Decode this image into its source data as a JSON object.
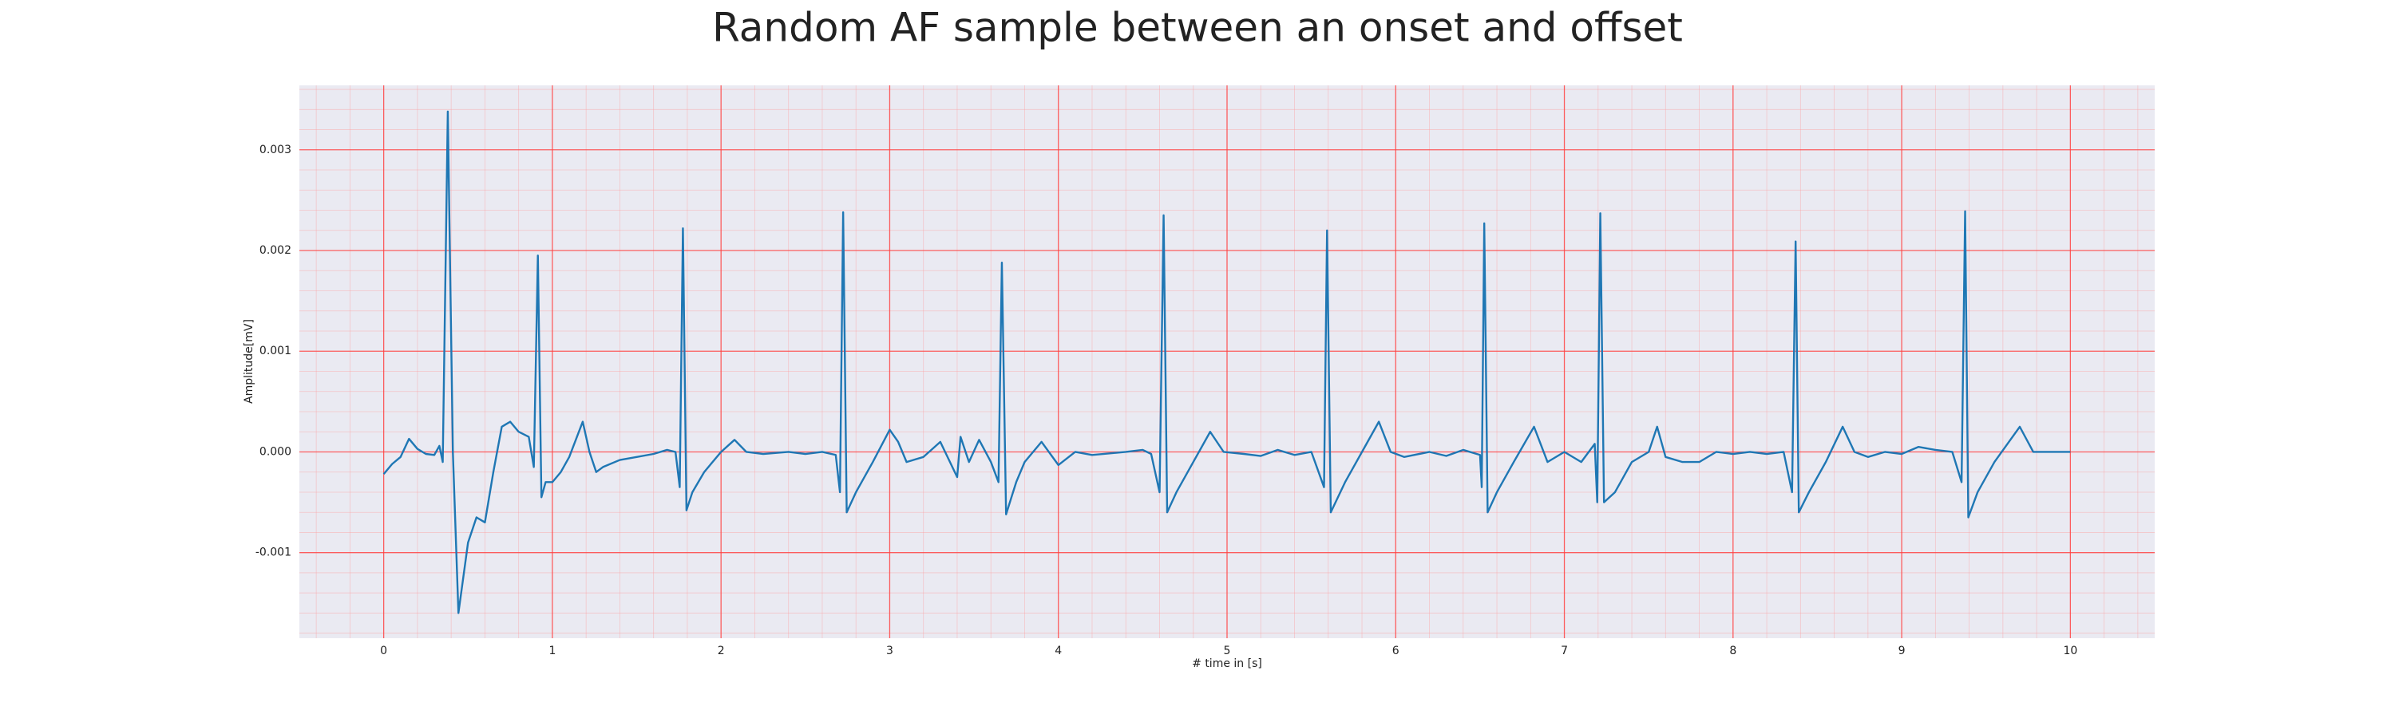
{
  "chart_data": {
    "type": "line",
    "title": "Random AF sample between an onset and offset",
    "xlabel": "# time in [s]",
    "ylabel": "Amplitude[mV]",
    "color": "#1f77b4",
    "grid": true,
    "minor_grid": true,
    "xlim": [
      -0.5,
      10.5
    ],
    "ylim": [
      -0.00185,
      0.00364
    ],
    "xticks": [
      0,
      1,
      2,
      3,
      4,
      5,
      6,
      7,
      8,
      9,
      10
    ],
    "yticks": [
      -0.001,
      {
        "value": 0,
        "label": "0.000"
      },
      0.001,
      0.002,
      0.003
    ],
    "x": [
      0,
      0.05,
      0.1,
      0.15,
      0.2,
      0.25,
      0.3,
      0.33,
      0.35,
      0.38,
      0.41,
      0.443,
      0.5,
      0.55,
      0.6,
      0.65,
      0.7,
      0.75,
      0.8,
      0.86,
      0.89,
      0.914,
      0.935,
      0.96,
      1.0,
      1.05,
      1.1,
      1.18,
      1.22,
      1.26,
      1.3,
      1.4,
      1.5,
      1.6,
      1.68,
      1.73,
      1.755,
      1.774,
      1.795,
      1.83,
      1.9,
      2.0,
      2.08,
      2.15,
      2.25,
      2.4,
      2.5,
      2.6,
      2.68,
      2.705,
      2.724,
      2.745,
      2.8,
      2.9,
      3.0,
      3.05,
      3.1,
      3.2,
      3.3,
      3.4,
      3.42,
      3.47,
      3.53,
      3.6,
      3.645,
      3.665,
      3.69,
      3.75,
      3.8,
      3.9,
      4.0,
      4.1,
      4.2,
      4.4,
      4.5,
      4.55,
      4.6,
      4.624,
      4.645,
      4.7,
      4.8,
      4.9,
      4.98,
      5.1,
      5.2,
      5.3,
      5.4,
      5.5,
      5.575,
      5.593,
      5.615,
      5.7,
      5.8,
      5.9,
      5.97,
      6.05,
      6.2,
      6.3,
      6.4,
      6.5,
      6.51,
      6.525,
      6.545,
      6.6,
      6.7,
      6.82,
      6.9,
      7.0,
      7.1,
      7.18,
      7.195,
      7.213,
      7.235,
      7.3,
      7.4,
      7.5,
      7.55,
      7.6,
      7.7,
      7.8,
      7.9,
      8.0,
      8.1,
      8.2,
      8.3,
      8.35,
      8.371,
      8.39,
      8.45,
      8.55,
      8.65,
      8.72,
      8.8,
      8.9,
      9.0,
      9.1,
      9.2,
      9.3,
      9.355,
      9.376,
      9.395,
      9.45,
      9.55,
      9.7,
      9.78,
      9.9,
      10.0
    ],
    "values": [
      -0.00022,
      -0.00012,
      -5e-05,
      0.00013,
      3e-05,
      -2e-05,
      -3e-05,
      6e-05,
      -0.0001,
      0.00338,
      0.0,
      -0.0016,
      -0.0009,
      -0.00065,
      -0.0007,
      -0.0002,
      0.00025,
      0.0003,
      0.0002,
      0.00015,
      -0.00015,
      0.00195,
      -0.00045,
      -0.0003,
      -0.0003,
      -0.0002,
      -5e-05,
      0.0003,
      0.0,
      -0.0002,
      -0.00015,
      -8e-05,
      -5e-05,
      -2e-05,
      2e-05,
      0.0,
      -0.00035,
      0.00222,
      -0.00058,
      -0.0004,
      -0.0002,
      0.0,
      0.00012,
      0.0,
      -2e-05,
      0.0,
      -2e-05,
      0.0,
      -3e-05,
      -0.0004,
      0.00238,
      -0.0006,
      -0.0004,
      -0.0001,
      0.00022,
      0.0001,
      -0.0001,
      -5e-05,
      0.0001,
      -0.00025,
      0.00015,
      -0.0001,
      0.00012,
      -0.0001,
      -0.0003,
      0.00188,
      -0.00062,
      -0.0003,
      -0.0001,
      0.0001,
      -0.00013,
      0.0,
      -3e-05,
      0.0,
      2e-05,
      -2e-05,
      -0.0004,
      0.00235,
      -0.0006,
      -0.0004,
      -0.0001,
      0.0002,
      0.0,
      -2e-05,
      -4e-05,
      2e-05,
      -3e-05,
      0.0,
      -0.00035,
      0.0022,
      -0.0006,
      -0.0003,
      0.0,
      0.0003,
      0.0,
      -5e-05,
      0.0,
      -4e-05,
      2e-05,
      -3e-05,
      -0.00035,
      0.00227,
      -0.0006,
      -0.0004,
      -0.0001,
      0.00025,
      -0.0001,
      0.0,
      -0.0001,
      8e-05,
      -0.0005,
      0.00237,
      -0.0005,
      -0.0004,
      -0.0001,
      0.0,
      0.00025,
      -5e-05,
      -0.0001,
      -0.0001,
      0.0,
      -2e-05,
      0.0,
      -2e-05,
      0.0,
      -0.0004,
      0.00209,
      -0.0006,
      -0.0004,
      -0.0001,
      0.00025,
      0.0,
      -5e-05,
      0.0,
      -2e-05,
      5e-05,
      2e-05,
      0.0,
      -0.0003,
      0.00239,
      -0.00065,
      -0.0004,
      -0.0001,
      0.00025,
      0.0,
      0.0,
      0.0
    ]
  }
}
